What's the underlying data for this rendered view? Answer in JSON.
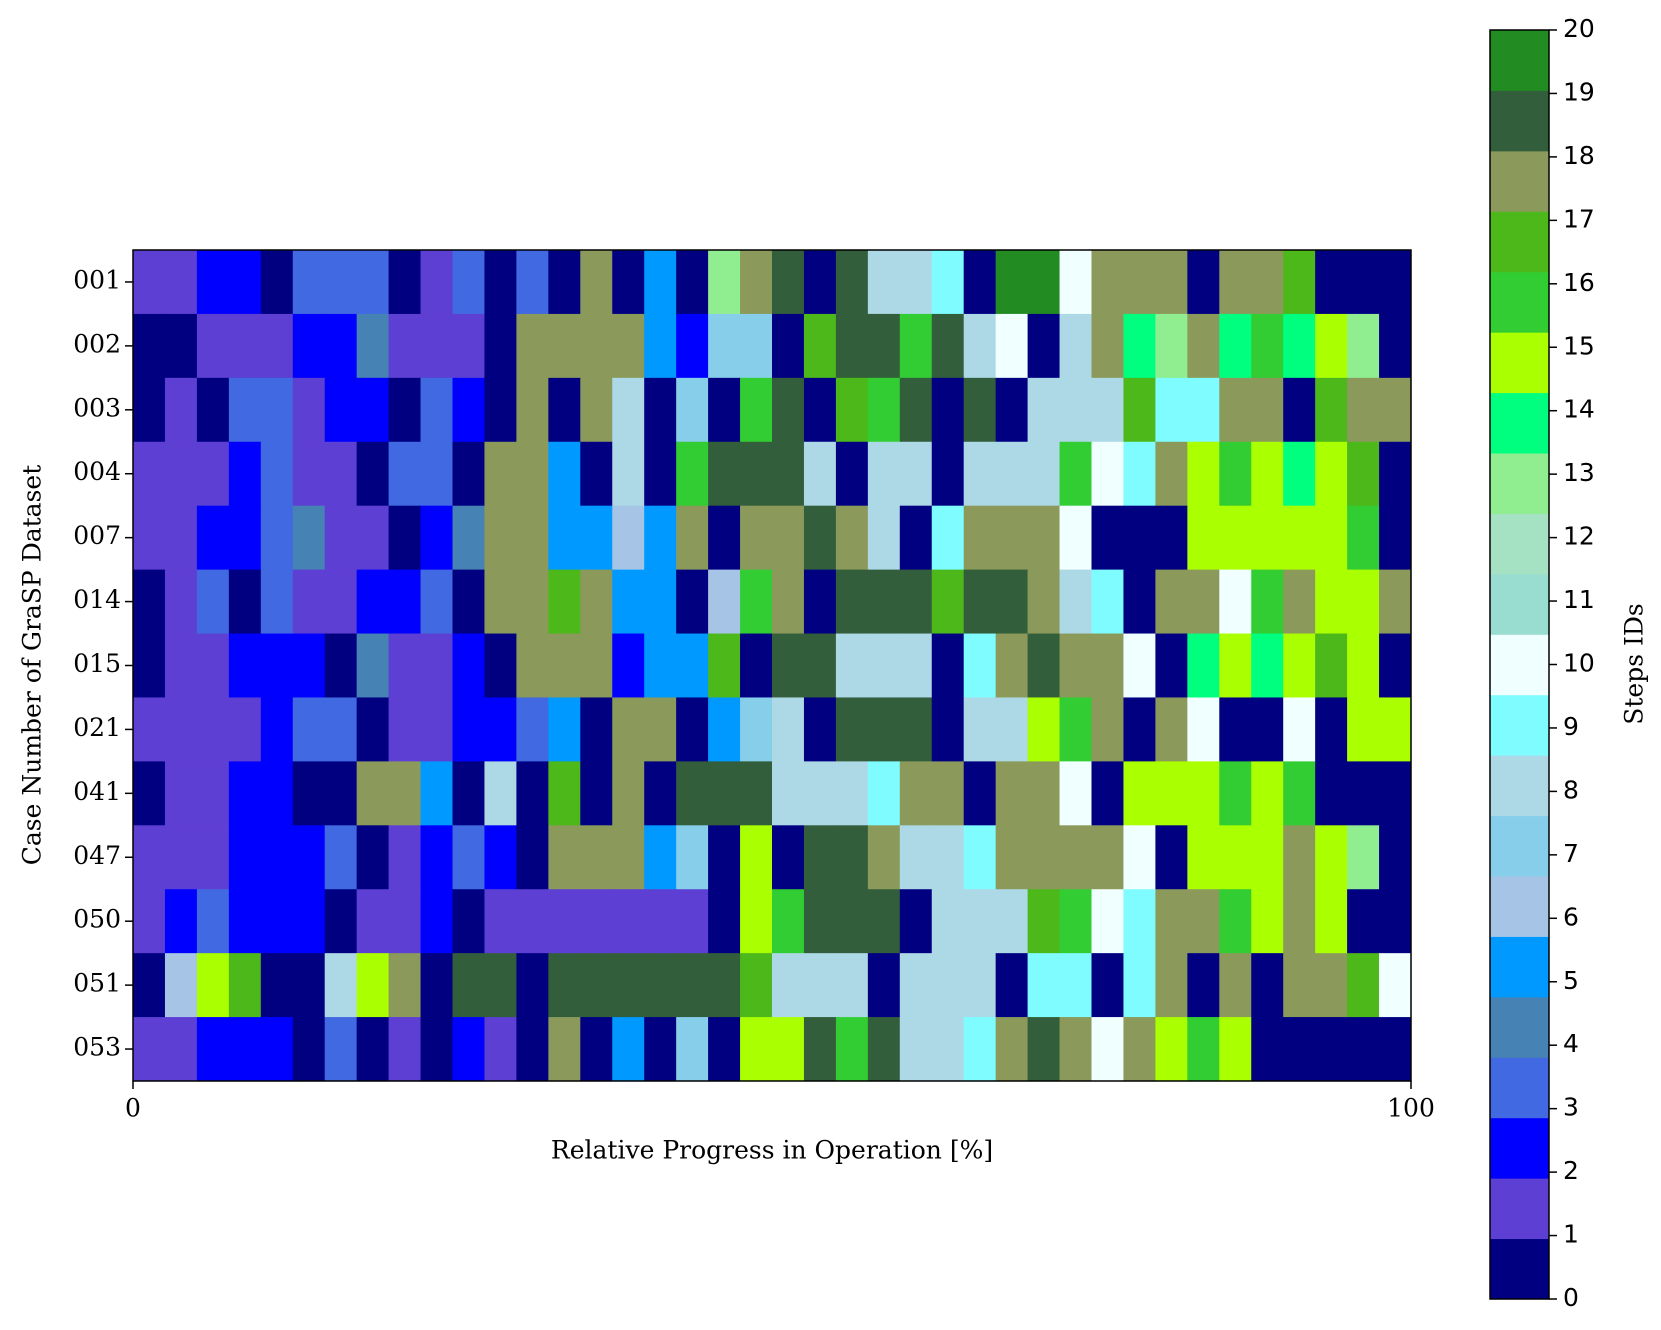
{
  "chart_data": {
    "type": "heatmap",
    "categories": [
      "001",
      "002",
      "003",
      "004",
      "007",
      "014",
      "015",
      "021",
      "041",
      "047",
      "050",
      "051",
      "053"
    ],
    "bins": [
      0,
      2.5,
      5,
      7.5,
      10,
      12.5,
      15,
      17.5,
      20,
      22.5,
      25,
      27.5,
      30,
      32.5,
      35,
      37.5,
      40,
      42.5,
      45,
      47.5,
      50,
      52.5,
      55,
      57.5,
      60,
      62.5,
      65,
      67.5,
      70,
      72.5,
      75,
      77.5,
      80,
      82.5,
      85,
      87.5,
      90,
      92.5,
      95,
      97.5,
      100
    ],
    "values": [
      [
        1,
        1,
        2,
        2,
        0,
        3,
        3,
        3,
        0,
        1,
        3,
        0,
        3,
        0,
        18,
        0,
        5,
        0,
        13,
        18,
        19,
        0,
        19,
        8,
        8,
        9,
        0,
        20,
        20,
        10,
        18,
        18,
        18,
        0,
        18,
        18,
        17,
        0,
        0,
        0
      ],
      [
        0,
        0,
        1,
        1,
        1,
        2,
        2,
        4,
        1,
        1,
        1,
        0,
        18,
        18,
        18,
        18,
        5,
        2,
        7,
        7,
        0,
        17,
        19,
        19,
        16,
        19,
        8,
        10,
        0,
        8,
        18,
        14,
        13,
        18,
        14,
        16,
        14,
        15,
        13,
        0
      ],
      [
        0,
        1,
        0,
        3,
        3,
        1,
        2,
        2,
        0,
        3,
        2,
        0,
        18,
        0,
        18,
        8,
        0,
        7,
        0,
        16,
        19,
        0,
        17,
        16,
        19,
        0,
        19,
        0,
        8,
        8,
        8,
        17,
        9,
        9,
        18,
        18,
        0,
        17,
        18,
        18
      ],
      [
        1,
        1,
        1,
        2,
        3,
        1,
        1,
        0,
        3,
        3,
        0,
        18,
        18,
        5,
        0,
        8,
        0,
        16,
        19,
        19,
        19,
        8,
        0,
        8,
        8,
        0,
        8,
        8,
        8,
        16,
        10,
        9,
        18,
        15,
        16,
        15,
        14,
        15,
        17,
        0
      ],
      [
        1,
        1,
        2,
        2,
        3,
        4,
        1,
        1,
        0,
        2,
        4,
        18,
        18,
        5,
        5,
        6,
        5,
        18,
        0,
        18,
        18,
        19,
        18,
        8,
        0,
        9,
        18,
        18,
        18,
        10,
        0,
        0,
        0,
        15,
        15,
        15,
        15,
        15,
        16,
        0
      ],
      [
        0,
        1,
        3,
        0,
        3,
        1,
        1,
        2,
        2,
        3,
        0,
        18,
        18,
        17,
        18,
        5,
        5,
        0,
        6,
        16,
        18,
        0,
        19,
        19,
        19,
        17,
        19,
        19,
        18,
        8,
        9,
        0,
        18,
        18,
        10,
        16,
        18,
        15,
        15,
        18
      ],
      [
        0,
        1,
        1,
        2,
        2,
        2,
        0,
        4,
        1,
        1,
        2,
        0,
        18,
        18,
        18,
        2,
        5,
        5,
        17,
        0,
        19,
        19,
        8,
        8,
        8,
        0,
        9,
        18,
        19,
        18,
        18,
        10,
        0,
        14,
        15,
        14,
        15,
        17,
        15,
        0
      ],
      [
        1,
        1,
        1,
        1,
        2,
        3,
        3,
        0,
        1,
        1,
        2,
        2,
        3,
        5,
        0,
        18,
        18,
        0,
        5,
        7,
        8,
        0,
        19,
        19,
        19,
        0,
        8,
        8,
        15,
        16,
        18,
        0,
        18,
        10,
        0,
        0,
        10,
        0,
        15,
        15
      ],
      [
        0,
        1,
        1,
        2,
        2,
        0,
        0,
        18,
        18,
        5,
        0,
        8,
        0,
        17,
        0,
        18,
        0,
        19,
        19,
        19,
        8,
        8,
        8,
        9,
        18,
        18,
        0,
        18,
        18,
        10,
        0,
        15,
        15,
        15,
        16,
        15,
        16,
        0,
        0,
        0
      ],
      [
        1,
        1,
        1,
        2,
        2,
        2,
        3,
        0,
        1,
        2,
        3,
        2,
        0,
        18,
        18,
        18,
        5,
        7,
        0,
        15,
        0,
        19,
        19,
        18,
        8,
        8,
        9,
        18,
        18,
        18,
        18,
        10,
        0,
        15,
        15,
        15,
        18,
        15,
        13,
        0
      ],
      [
        1,
        2,
        3,
        2,
        2,
        2,
        0,
        1,
        1,
        2,
        0,
        1,
        1,
        1,
        1,
        1,
        1,
        1,
        0,
        15,
        16,
        19,
        19,
        19,
        0,
        8,
        8,
        8,
        17,
        16,
        10,
        9,
        18,
        18,
        16,
        15,
        18,
        15,
        0,
        0
      ],
      [
        0,
        6,
        15,
        17,
        0,
        0,
        8,
        15,
        18,
        0,
        19,
        19,
        0,
        19,
        19,
        19,
        19,
        19,
        19,
        17,
        8,
        8,
        8,
        0,
        8,
        8,
        8,
        0,
        9,
        9,
        0,
        9,
        18,
        0,
        18,
        0,
        18,
        18,
        17,
        10
      ],
      [
        1,
        1,
        2,
        2,
        2,
        0,
        3,
        0,
        1,
        0,
        2,
        1,
        0,
        18,
        0,
        5,
        0,
        7,
        0,
        15,
        15,
        19,
        16,
        19,
        8,
        8,
        9,
        18,
        19,
        18,
        10,
        18,
        15,
        16,
        15,
        0,
        0,
        0,
        0,
        0
      ]
    ],
    "xlim": [
      0,
      100
    ],
    "xticks": [
      0,
      100
    ],
    "xlabel": "Relative Progress in Operation [%]",
    "ylabel": "Case Number of GraSP Dataset",
    "colorbar": {
      "label": "Steps IDs",
      "lim": [
        0,
        20
      ],
      "ticks": [
        0,
        1,
        2,
        3,
        4,
        5,
        6,
        7,
        8,
        9,
        10,
        11,
        12,
        13,
        14,
        15,
        16,
        17,
        18,
        19,
        20
      ],
      "colors": [
        "#000080",
        "#5e3fd3",
        "#0000ff",
        "#4169e1",
        "#4682b4",
        "#0099ff",
        "#a6c4e6",
        "#87ceeb",
        "#add8e6",
        "#7ffcff",
        "#f0ffff",
        "#99ddd0",
        "#a5e2c4",
        "#90ee90",
        "#00ff7f",
        "#aaff00",
        "#32cd32",
        "#4cb81a",
        "#8b9a5b",
        "#335e3b",
        "#228b22"
      ]
    }
  }
}
